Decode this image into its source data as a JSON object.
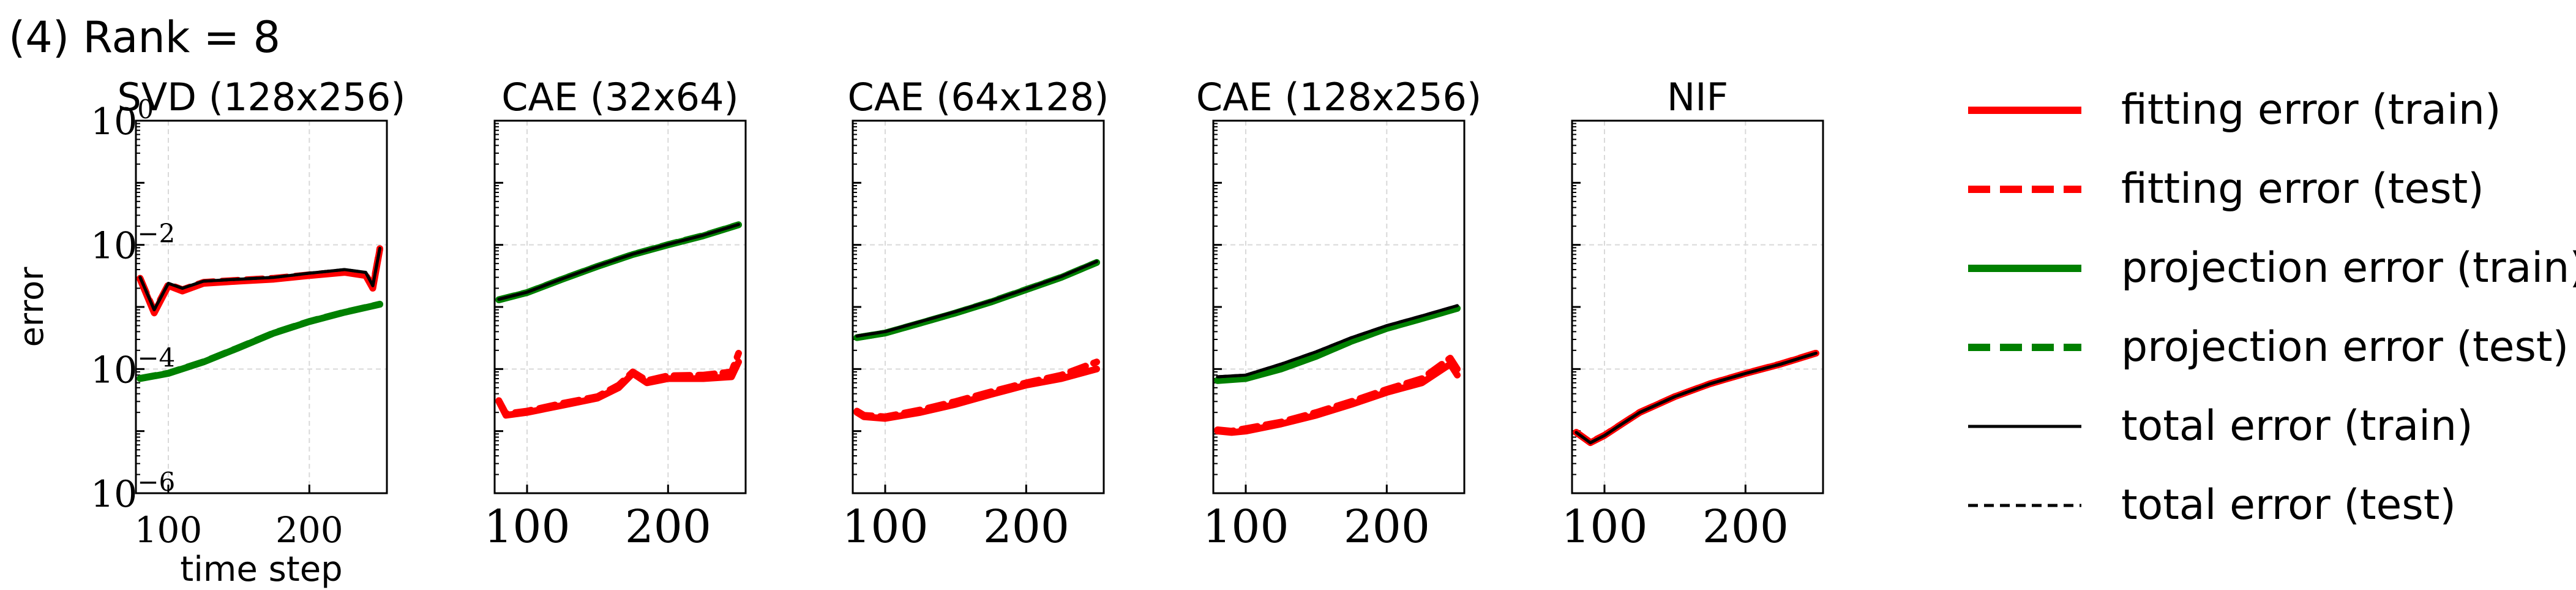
{
  "figure": {
    "label": "(4) Rank = 8"
  },
  "colors": {
    "fitting": "#ff0000",
    "projection": "#008000",
    "total": "#000000"
  },
  "legend": {
    "placement": "right",
    "entries": [
      {
        "label": "fitting error (train)",
        "color": "#ff0000",
        "style": "solid",
        "weight": "thick"
      },
      {
        "label": "fitting error (test)",
        "color": "#ff0000",
        "style": "dashed",
        "weight": "thick"
      },
      {
        "label": "projection error (train)",
        "color": "#008000",
        "style": "solid",
        "weight": "thick"
      },
      {
        "label": "projection error (test)",
        "color": "#008000",
        "style": "dashed",
        "weight": "thick"
      },
      {
        "label": "total error (train)",
        "color": "#000000",
        "style": "solid",
        "weight": "thin"
      },
      {
        "label": "total error (test)",
        "color": "#000000",
        "style": "dashed",
        "weight": "thin"
      }
    ]
  },
  "chart_data": [
    {
      "type": "line",
      "title": "SVD (128x256)",
      "xlabel": "time step",
      "ylabel": "error",
      "yscale": "log",
      "ylim": [
        1e-06,
        1
      ],
      "xlim": [
        77,
        255
      ],
      "xticks": [
        "100",
        "200"
      ],
      "yticks": [
        "10^0",
        "10^-2",
        "10^-4",
        "10^-6"
      ],
      "grid": true,
      "series": [
        {
          "name": "fitting error (train)",
          "x": [
            80,
            90,
            100,
            110,
            125,
            150,
            175,
            200,
            225,
            240,
            245,
            250
          ],
          "y": [
            0.0028,
            0.0008,
            0.0022,
            0.0018,
            0.0024,
            0.0026,
            0.0028,
            0.0032,
            0.0036,
            0.0032,
            0.002,
            0.0085
          ]
        },
        {
          "name": "fitting error (test)",
          "x": [
            80,
            90,
            100,
            110,
            125,
            150,
            175,
            200,
            225,
            240,
            245,
            250
          ],
          "y": [
            0.0029,
            0.00085,
            0.0023,
            0.0019,
            0.0025,
            0.0027,
            0.0029,
            0.0033,
            0.0037,
            0.0033,
            0.0021,
            0.0087
          ]
        },
        {
          "name": "projection error (train)",
          "x": [
            80,
            100,
            125,
            150,
            175,
            200,
            225,
            250
          ],
          "y": [
            7e-05,
            8.5e-05,
            0.00013,
            0.00022,
            0.00038,
            0.00058,
            0.00082,
            0.0011
          ]
        },
        {
          "name": "projection error (test)",
          "x": [
            80,
            100,
            125,
            150,
            175,
            200,
            225,
            250
          ],
          "y": [
            7.1e-05,
            8.6e-05,
            0.000131,
            0.000222,
            0.000383,
            0.000585,
            0.000825,
            0.00111
          ]
        },
        {
          "name": "total error (train)",
          "x": [
            80,
            90,
            100,
            110,
            125,
            150,
            175,
            200,
            225,
            240,
            245,
            250
          ],
          "y": [
            0.003,
            0.0009,
            0.0024,
            0.002,
            0.0026,
            0.0028,
            0.003,
            0.0035,
            0.004,
            0.0036,
            0.0022,
            0.0088
          ]
        },
        {
          "name": "total error (test)",
          "x": [
            80,
            90,
            100,
            110,
            125,
            150,
            175,
            200,
            225,
            240,
            245,
            250
          ],
          "y": [
            0.003,
            0.0009,
            0.0024,
            0.002,
            0.0026,
            0.0028,
            0.003,
            0.0035,
            0.004,
            0.0036,
            0.0022,
            0.0088
          ]
        }
      ]
    },
    {
      "type": "line",
      "title": "CAE (32x64)",
      "yscale": "log",
      "ylim": [
        1e-06,
        1
      ],
      "xlim": [
        77,
        255
      ],
      "xticks": [
        "100",
        "200"
      ],
      "grid": true,
      "series": [
        {
          "name": "fitting error (train)",
          "x": [
            80,
            85,
            100,
            125,
            150,
            165,
            175,
            185,
            200,
            225,
            245,
            250
          ],
          "y": [
            3e-05,
            1.8e-05,
            2e-05,
            2.6e-05,
            3.4e-05,
            5e-05,
            8.5e-05,
            6e-05,
            7e-05,
            7e-05,
            7.5e-05,
            0.00013
          ]
        },
        {
          "name": "fitting error (test)",
          "x": [
            80,
            85,
            100,
            125,
            150,
            165,
            175,
            185,
            200,
            225,
            245,
            250
          ],
          "y": [
            3.1e-05,
            1.9e-05,
            2.1e-05,
            2.8e-05,
            3.6e-05,
            5.5e-05,
            9e-05,
            6.5e-05,
            7.8e-05,
            8e-05,
            9e-05,
            0.00018
          ]
        },
        {
          "name": "projection error (train)",
          "x": [
            80,
            100,
            125,
            150,
            175,
            200,
            225,
            250
          ],
          "y": [
            0.0013,
            0.0017,
            0.0028,
            0.0045,
            0.007,
            0.01,
            0.014,
            0.021
          ]
        },
        {
          "name": "projection error (test)",
          "x": [
            80,
            100,
            125,
            150,
            175,
            200,
            225,
            250
          ],
          "y": [
            0.00131,
            0.00171,
            0.00281,
            0.00451,
            0.00701,
            0.0101,
            0.0141,
            0.0211
          ]
        },
        {
          "name": "total error (train)",
          "x": [
            80,
            100,
            125,
            150,
            175,
            200,
            225,
            250
          ],
          "y": [
            0.00133,
            0.00173,
            0.00285,
            0.00458,
            0.0071,
            0.0102,
            0.0143,
            0.0213
          ]
        },
        {
          "name": "total error (test)",
          "x": [
            80,
            100,
            125,
            150,
            175,
            200,
            225,
            250
          ],
          "y": [
            0.00133,
            0.00173,
            0.00285,
            0.00458,
            0.0071,
            0.0102,
            0.0143,
            0.0213
          ]
        }
      ]
    },
    {
      "type": "line",
      "title": "CAE (64x128)",
      "yscale": "log",
      "ylim": [
        1e-06,
        1
      ],
      "xlim": [
        77,
        255
      ],
      "xticks": [
        "100",
        "200"
      ],
      "grid": true,
      "series": [
        {
          "name": "fitting error (train)",
          "x": [
            80,
            85,
            100,
            125,
            150,
            175,
            200,
            225,
            250
          ],
          "y": [
            2e-05,
            1.7e-05,
            1.6e-05,
            2e-05,
            2.7e-05,
            3.9e-05,
            5.5e-05,
            7e-05,
            0.0001
          ]
        },
        {
          "name": "fitting error (test)",
          "x": [
            80,
            85,
            100,
            125,
            150,
            175,
            200,
            225,
            250
          ],
          "y": [
            2.1e-05,
            1.8e-05,
            1.7e-05,
            2.2e-05,
            3e-05,
            4.3e-05,
            6e-05,
            8e-05,
            0.00013
          ]
        },
        {
          "name": "projection error (train)",
          "x": [
            80,
            100,
            125,
            150,
            175,
            200,
            225,
            250
          ],
          "y": [
            0.00032,
            0.00038,
            0.00055,
            0.0008,
            0.0012,
            0.0019,
            0.003,
            0.0052
          ]
        },
        {
          "name": "projection error (test)",
          "x": [
            80,
            100,
            125,
            150,
            175,
            200,
            225,
            250
          ],
          "y": [
            0.000321,
            0.000381,
            0.000551,
            0.000801,
            0.00121,
            0.00191,
            0.00301,
            0.00521
          ]
        },
        {
          "name": "total error (train)",
          "x": [
            80,
            100,
            125,
            150,
            175,
            200,
            225,
            250
          ],
          "y": [
            0.00034,
            0.0004,
            0.00058,
            0.00084,
            0.00125,
            0.00195,
            0.0031,
            0.0054
          ]
        },
        {
          "name": "total error (test)",
          "x": [
            80,
            100,
            125,
            150,
            175,
            200,
            225,
            250
          ],
          "y": [
            0.00034,
            0.0004,
            0.00058,
            0.00084,
            0.00125,
            0.00195,
            0.0031,
            0.0054
          ]
        }
      ]
    },
    {
      "type": "line",
      "title": "CAE (128x256)",
      "yscale": "log",
      "ylim": [
        1e-06,
        1
      ],
      "xlim": [
        77,
        255
      ],
      "xticks": [
        "100",
        "200"
      ],
      "grid": true,
      "series": [
        {
          "name": "fitting error (train)",
          "x": [
            80,
            90,
            100,
            125,
            150,
            175,
            200,
            225,
            245,
            250
          ],
          "y": [
            1e-05,
            9.5e-06,
            1e-05,
            1.3e-05,
            1.8e-05,
            2.7e-05,
            4.2e-05,
            6e-05,
            0.00012,
            8e-05
          ]
        },
        {
          "name": "fitting error (test)",
          "x": [
            80,
            90,
            100,
            125,
            150,
            175,
            200,
            225,
            245,
            250
          ],
          "y": [
            1.05e-05,
            1e-05,
            1.1e-05,
            1.4e-05,
            2e-05,
            3e-05,
            4.7e-05,
            7e-05,
            0.00015,
            0.0001
          ]
        },
        {
          "name": "projection error (train)",
          "x": [
            80,
            100,
            125,
            150,
            175,
            200,
            225,
            250
          ],
          "y": [
            6.5e-05,
            7e-05,
            0.0001,
            0.00016,
            0.00028,
            0.00045,
            0.00065,
            0.00095
          ]
        },
        {
          "name": "projection error (test)",
          "x": [
            80,
            100,
            125,
            150,
            175,
            200,
            225,
            250
          ],
          "y": [
            6.6e-05,
            7.1e-05,
            0.000101,
            0.000161,
            0.000281,
            0.000451,
            0.000651,
            0.000951
          ]
        },
        {
          "name": "total error (train)",
          "x": [
            80,
            100,
            125,
            150,
            175,
            200,
            225,
            250
          ],
          "y": [
            7.5e-05,
            8e-05,
            0.00012,
            0.00019,
            0.00032,
            0.0005,
            0.00072,
            0.00105
          ]
        },
        {
          "name": "total error (test)",
          "x": [
            80,
            100,
            125,
            150,
            175,
            200,
            225,
            250
          ],
          "y": [
            7.5e-05,
            8e-05,
            0.00012,
            0.00019,
            0.00032,
            0.0005,
            0.00072,
            0.00105
          ]
        }
      ]
    },
    {
      "type": "line",
      "title": "NIF",
      "yscale": "log",
      "ylim": [
        1e-06,
        1
      ],
      "xlim": [
        77,
        255
      ],
      "xticks": [
        "100",
        "200"
      ],
      "grid": true,
      "series": [
        {
          "name": "fitting error (train)",
          "x": [
            80,
            90,
            100,
            110,
            125,
            150,
            175,
            200,
            225,
            250
          ],
          "y": [
            9.5e-06,
            6.5e-06,
            8.5e-06,
            1.2e-05,
            2e-05,
            3.6e-05,
            5.8e-05,
            8.5e-05,
            0.00012,
            0.00018
          ]
        },
        {
          "name": "fitting error (test)",
          "x": [
            80,
            90,
            100,
            110,
            125,
            150,
            175,
            200,
            225,
            250
          ],
          "y": [
            9.6e-06,
            6.6e-06,
            8.6e-06,
            1.21e-05,
            2.01e-05,
            3.61e-05,
            5.81e-05,
            8.51e-05,
            0.000121,
            0.000181
          ]
        },
        {
          "name": "total error (train)",
          "x": [
            80,
            90,
            100,
            110,
            125,
            150,
            175,
            200,
            225,
            250
          ],
          "y": [
            9.5e-06,
            6.5e-06,
            8.5e-06,
            1.2e-05,
            2e-05,
            3.6e-05,
            5.8e-05,
            8.5e-05,
            0.00012,
            0.00018
          ]
        },
        {
          "name": "total error (test)",
          "x": [
            80,
            90,
            100,
            110,
            125,
            150,
            175,
            200,
            225,
            250
          ],
          "y": [
            9.5e-06,
            6.5e-06,
            8.5e-06,
            1.2e-05,
            2e-05,
            3.6e-05,
            5.8e-05,
            8.5e-05,
            0.00012,
            0.00018
          ]
        }
      ]
    }
  ]
}
